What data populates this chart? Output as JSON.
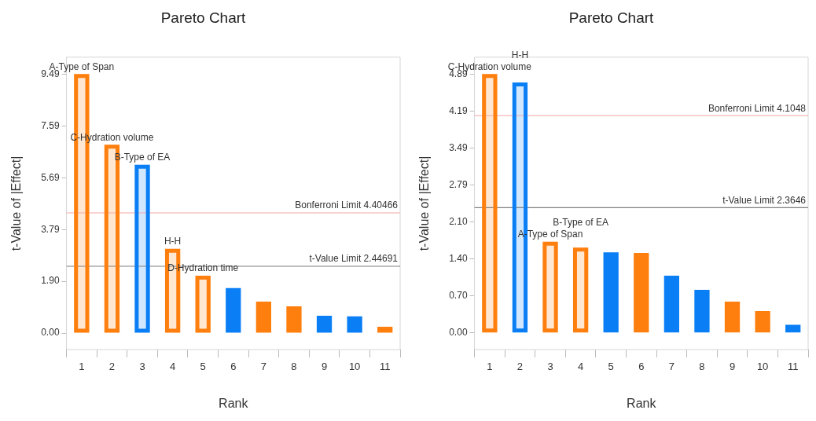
{
  "chart_data": [
    {
      "type": "bar",
      "title": "Pareto Chart",
      "xlabel": "Rank",
      "ylabel": "t-Value of |Effect|",
      "categories": [
        "1",
        "2",
        "3",
        "4",
        "5",
        "6",
        "7",
        "8",
        "9",
        "10",
        "11"
      ],
      "values": [
        9.49,
        6.9,
        6.17,
        3.09,
        2.1,
        1.65,
        1.15,
        0.98,
        0.63,
        0.61,
        0.23
      ],
      "colors": [
        "#ff7f0e",
        "#ff7f0e",
        "#0a7ff5",
        "#ff7f0e",
        "#ff7f0e",
        "#0a7ff5",
        "#ff7f0e",
        "#ff7f0e",
        "#0a7ff5",
        "#0a7ff5",
        "#ff7f0e"
      ],
      "value_labels": [
        "A-Type of Span",
        "C-Hydration volume",
        "B-Type of EA",
        "H-H",
        "D-Hydration time",
        null,
        null,
        null,
        null,
        null,
        null
      ],
      "ylim": [
        -0.61,
        10.11
      ],
      "yticks": [
        {
          "value": 0,
          "label": "0.00"
        },
        {
          "value": 1.9,
          "label": "1.90"
        },
        {
          "value": 3.79,
          "label": "3.79"
        },
        {
          "value": 5.69,
          "label": "5.69"
        },
        {
          "value": 7.59,
          "label": "7.59"
        },
        {
          "value": 9.49,
          "label": "9.49"
        }
      ],
      "ref_lines": [
        {
          "axis": "y",
          "value": 4.40466,
          "label": "Bonferroni Limit 4.40466",
          "color": "#f4a6a6"
        },
        {
          "axis": "y",
          "value": 2.44691,
          "label": "t-Value Limit 2.44691",
          "color": "#808080"
        }
      ],
      "grid": false,
      "legend": false
    },
    {
      "type": "bar",
      "title": "Pareto Chart",
      "xlabel": "Rank",
      "ylabel": "t-Value of |Effect|",
      "categories": [
        "1",
        "2",
        "3",
        "4",
        "5",
        "6",
        "7",
        "8",
        "9",
        "10",
        "11"
      ],
      "values": [
        4.89,
        4.73,
        1.72,
        1.61,
        1.52,
        1.51,
        1.08,
        0.81,
        0.59,
        0.41,
        0.15
      ],
      "colors": [
        "#ff7f0e",
        "#0a7ff5",
        "#ff7f0e",
        "#ff7f0e",
        "#0a7ff5",
        "#ff7f0e",
        "#0a7ff5",
        "#0a7ff5",
        "#ff7f0e",
        "#ff7f0e",
        "#0a7ff5"
      ],
      "value_labels": [
        "C-Hydration volume",
        "H-H",
        "A-Type of Span",
        "B-Type of EA",
        null,
        null,
        null,
        null,
        null,
        null,
        null
      ],
      "ylim": [
        -0.32,
        5.21
      ],
      "yticks": [
        {
          "value": 0,
          "label": "0.00"
        },
        {
          "value": 0.7,
          "label": "0.70"
        },
        {
          "value": 1.4,
          "label": "1.40"
        },
        {
          "value": 2.1,
          "label": "2.10"
        },
        {
          "value": 2.79,
          "label": "2.79"
        },
        {
          "value": 3.49,
          "label": "3.49"
        },
        {
          "value": 4.19,
          "label": "4.19"
        },
        {
          "value": 4.89,
          "label": "4.89"
        }
      ],
      "ref_lines": [
        {
          "axis": "y",
          "value": 4.1048,
          "label": "Bonferroni Limit 4.1048",
          "color": "#f4a6a6"
        },
        {
          "axis": "y",
          "value": 2.3646,
          "label": "t-Value Limit 2.3646",
          "color": "#808080"
        }
      ],
      "grid": false,
      "legend": false
    }
  ]
}
